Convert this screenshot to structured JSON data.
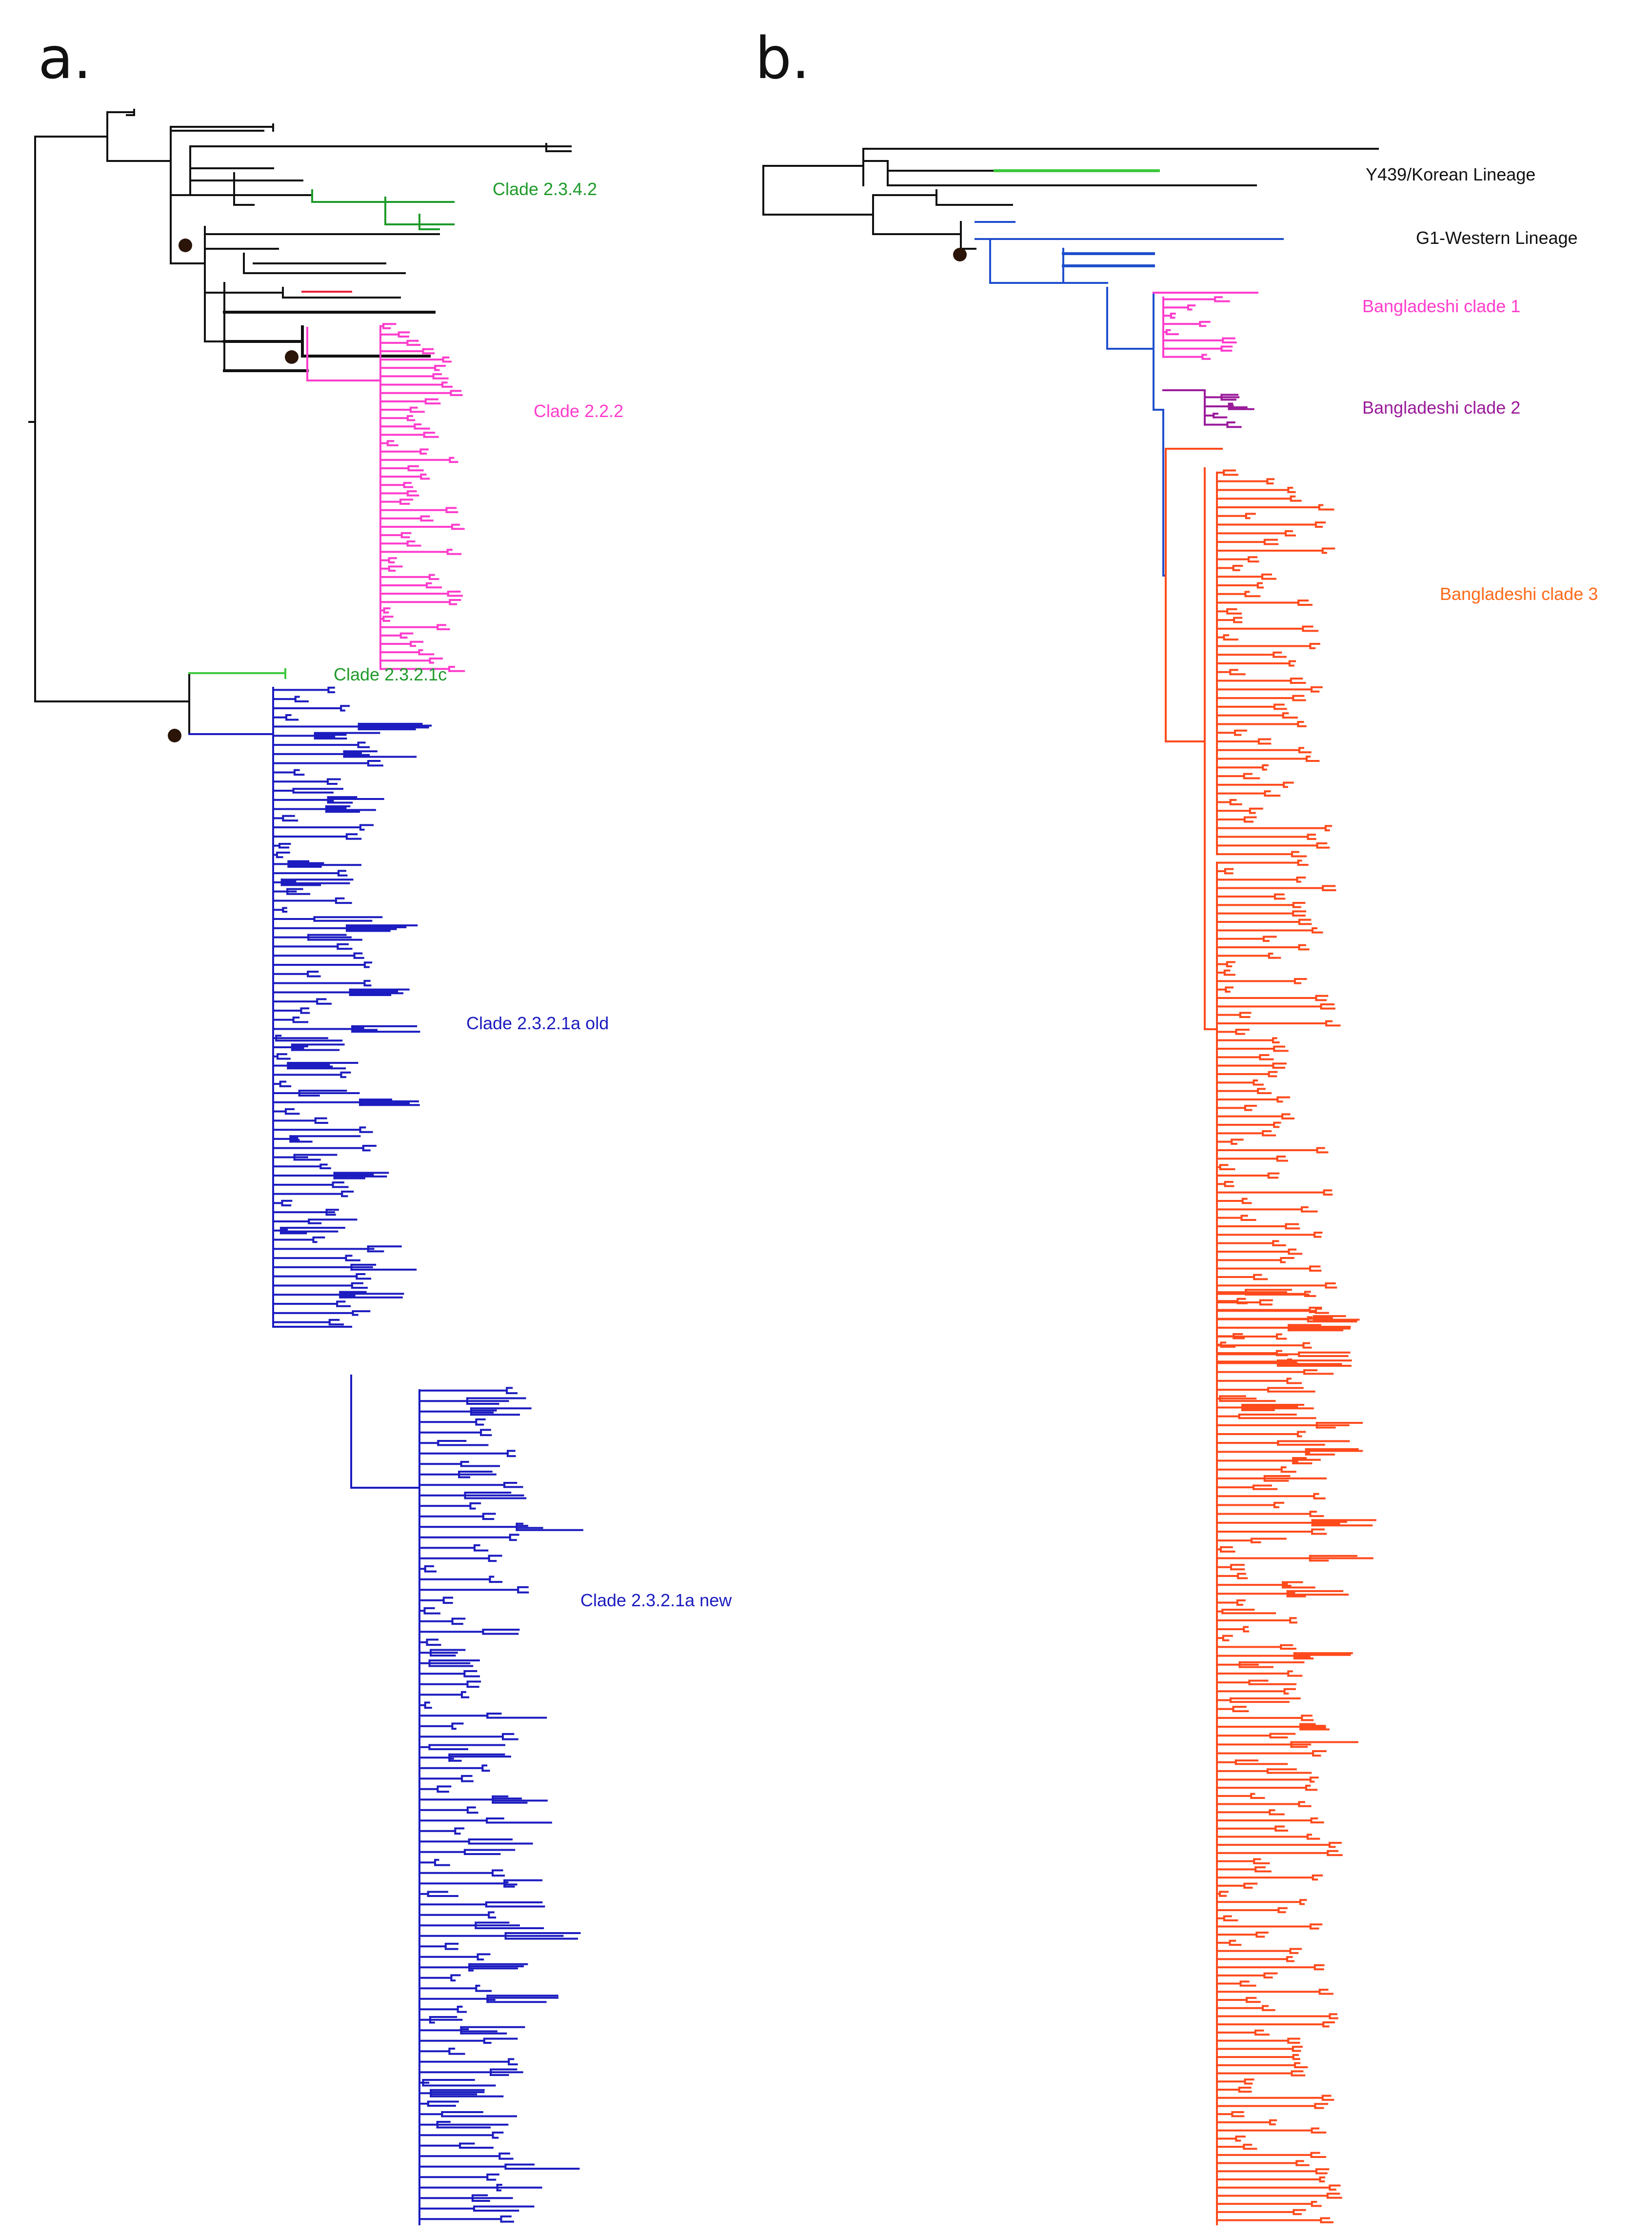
{
  "panels": {
    "a": {
      "letter": "a.",
      "labels": {
        "clade_2342": "Clade 2.3.4.2",
        "clade_222": "Clade 2.2.2",
        "clade_2321c": "Clade 2.3.2.1c",
        "clade_2321a_old": "Clade 2.3.2.1a old",
        "clade_2321a_new": "Clade 2.3.2.1a new"
      }
    },
    "b": {
      "letter": "b.",
      "labels": {
        "y439": "Y439/Korean Lineage",
        "g1": "G1-Western Lineage",
        "bd1": "Bangladeshi clade 1",
        "bd2": "Bangladeshi clade 2",
        "bd3": "Bangladeshi clade 3"
      }
    }
  },
  "colors": {
    "black": "#111111",
    "green_dark": "#1f9a2a",
    "green_light": "#3cc83c",
    "magenta": "#ff3ccc",
    "purple": "#9a1a9a",
    "blue": "#1c1cc0",
    "blue_lineage": "#1f4fcc",
    "orange": "#ff4a1c",
    "orange_label": "#ff6a1a",
    "red": "#e8203a",
    "node": "#2a1508"
  }
}
